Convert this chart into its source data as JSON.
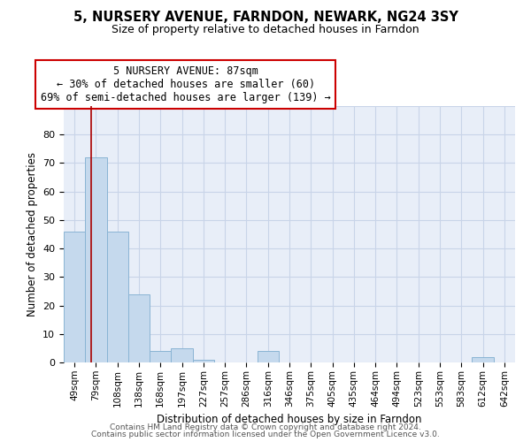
{
  "title": "5, NURSERY AVENUE, FARNDON, NEWARK, NG24 3SY",
  "subtitle": "Size of property relative to detached houses in Farndon",
  "xlabel": "Distribution of detached houses by size in Farndon",
  "ylabel": "Number of detached properties",
  "categories": [
    "49sqm",
    "79sqm",
    "108sqm",
    "138sqm",
    "168sqm",
    "197sqm",
    "227sqm",
    "257sqm",
    "286sqm",
    "316sqm",
    "346sqm",
    "375sqm",
    "405sqm",
    "435sqm",
    "464sqm",
    "494sqm",
    "523sqm",
    "553sqm",
    "583sqm",
    "612sqm",
    "642sqm"
  ],
  "values": [
    46,
    72,
    46,
    24,
    4,
    5,
    1,
    0,
    0,
    4,
    0,
    0,
    0,
    0,
    0,
    0,
    0,
    0,
    0,
    2,
    0
  ],
  "bar_color": "#c5d9ed",
  "bar_edge_color": "#8ab4d4",
  "annotation_title": "5 NURSERY AVENUE: 87sqm",
  "annotation_line1": "← 30% of detached houses are smaller (60)",
  "annotation_line2": "69% of semi-detached houses are larger (139) →",
  "line_color": "#aa0000",
  "ylim": [
    0,
    90
  ],
  "yticks": [
    0,
    10,
    20,
    30,
    40,
    50,
    60,
    70,
    80,
    90
  ],
  "bg_color": "#e8eef8",
  "grid_color": "#c8d4e8",
  "footer1": "Contains HM Land Registry data © Crown copyright and database right 2024.",
  "footer2": "Contains public sector information licensed under the Open Government Licence v3.0."
}
